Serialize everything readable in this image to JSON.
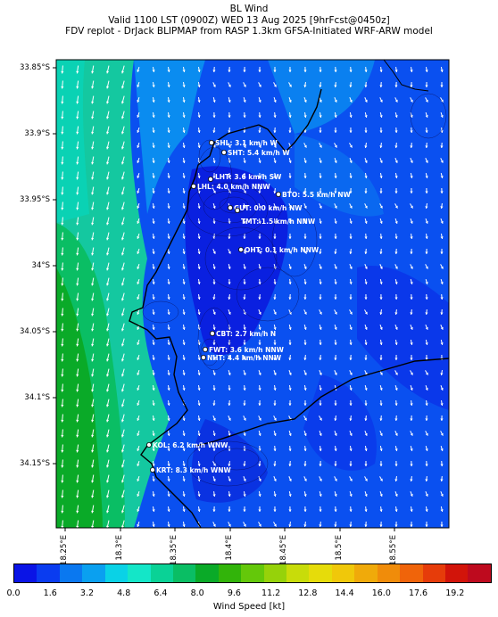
{
  "title": {
    "line1": "BL Wind",
    "line2": "Valid 1100 LST (0900Z) WED 13 Aug 2025 [9hrFcst@0450z]",
    "line3": "FDV replot - DrJack BLIPMAP from RASP 1.3km GFSA-Initiated WRF-ARW model"
  },
  "lat_labels": [
    "33.85°S",
    "33.9°S",
    "33.95°S",
    "34°S",
    "34.05°S",
    "34.1°S",
    "34.15°S"
  ],
  "lon_labels": [
    "18.25°E",
    "18.3°E",
    "18.35°E",
    "18.4°E",
    "18.45°E",
    "18.5°E",
    "18.55°E"
  ],
  "sites": [
    {
      "text": "SHL: 3.1 km/h W"
    },
    {
      "text": "SHT: 5.4 km/h W"
    },
    {
      "text": "LHT: 3.6 km/h SW"
    },
    {
      "text": "LHL: 4.0 km/h NNW"
    },
    {
      "text": "BTO: 5.5 km/h NW"
    },
    {
      "text": "GUT: 0.0 km/h NW"
    },
    {
      "text": "TMT: 1.5 km/h NNW"
    },
    {
      "text": "OHT: 0.1 km/h NNW"
    },
    {
      "text": "CBT: 2.7 km/h N"
    },
    {
      "text": "FWT: 3.6 km/h NNW"
    },
    {
      "text": "NHT: 4.4 km/h NNW"
    },
    {
      "text": "KOL: 6.2 km/h WNW"
    },
    {
      "text": "KRT: 8.3 km/h WNW"
    }
  ],
  "colorbar": {
    "label": "Wind Speed [kt]",
    "ticks": [
      "0.0",
      "1.6",
      "3.2",
      "4.8",
      "6.4",
      "8.0",
      "9.6",
      "11.2",
      "12.8",
      "14.4",
      "16.0",
      "17.6",
      "19.2"
    ],
    "colors": [
      "#0a14e6",
      "#0a3cf0",
      "#0a78f0",
      "#0aa0f0",
      "#0ad2e6",
      "#14e6c8",
      "#0ad296",
      "#0abe64",
      "#0aaa28",
      "#32b40a",
      "#64c80a",
      "#96d20a",
      "#c8dc0a",
      "#e6dc0a",
      "#f0c80a",
      "#f0aa0a",
      "#f08c0a",
      "#f0640a",
      "#e63c0a",
      "#d2140a",
      "#be0a1e"
    ]
  }
}
